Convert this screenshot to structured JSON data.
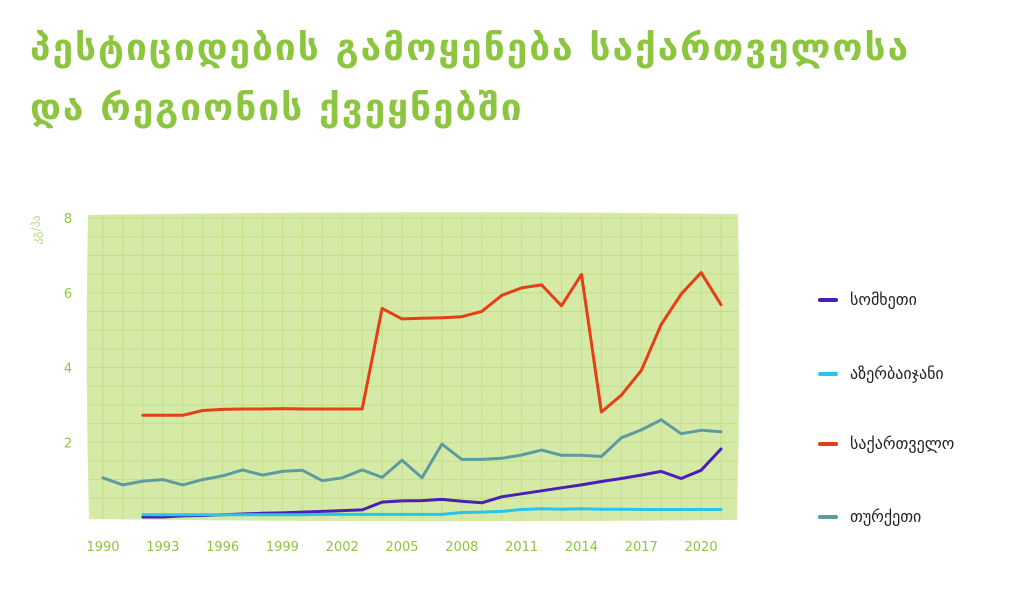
{
  "title": {
    "line1": "პესტიციდების გამოყენება საქართველოსა",
    "line2": "და რეგიონის ქვეყნებში"
  },
  "colors": {
    "title": "#8cc63f",
    "plot_bg": "#d6eaa8",
    "grid": "#c2df86",
    "tick": "#8cc63f"
  },
  "chart_data": {
    "type": "line",
    "ylabel": "კგ/ჰა",
    "xlabel": "",
    "xlim": [
      1990,
      2021
    ],
    "ylim": [
      0,
      8
    ],
    "xticks": [
      "1990",
      "1993",
      "1996",
      "1999",
      "2002",
      "2005",
      "2008",
      "2011",
      "2014",
      "2017",
      "2020"
    ],
    "yticks": [
      "2",
      "4",
      "6",
      "8"
    ],
    "grid": true,
    "legend_position": "right",
    "series": [
      {
        "name": "სომხეთი",
        "color": "#4a1fb3",
        "x": [
          1992,
          1993,
          1994,
          1995,
          1996,
          1997,
          1998,
          1999,
          2000,
          2001,
          2002,
          2003,
          2004,
          2005,
          2006,
          2007,
          2008,
          2009,
          2010,
          2011,
          2012,
          2013,
          2014,
          2015,
          2016,
          2017,
          2018,
          2019,
          2020,
          2021
        ],
        "y": [
          0.0,
          0.0,
          0.03,
          0.04,
          0.06,
          0.08,
          0.1,
          0.11,
          0.13,
          0.15,
          0.17,
          0.19,
          0.4,
          0.43,
          0.44,
          0.47,
          0.42,
          0.38,
          0.54,
          0.62,
          0.7,
          0.78,
          0.86,
          0.95,
          1.03,
          1.12,
          1.22,
          1.03,
          1.25,
          1.82
        ]
      },
      {
        "name": "აზერბაიჯანი",
        "color": "#29c3ec",
        "x": [
          1992,
          1993,
          1994,
          1995,
          1996,
          1997,
          1998,
          1999,
          2000,
          2001,
          2002,
          2003,
          2004,
          2005,
          2006,
          2007,
          2008,
          2009,
          2010,
          2011,
          2012,
          2013,
          2014,
          2015,
          2016,
          2017,
          2018,
          2019,
          2020,
          2021
        ],
        "y": [
          0.06,
          0.06,
          0.06,
          0.06,
          0.06,
          0.06,
          0.06,
          0.06,
          0.06,
          0.07,
          0.07,
          0.07,
          0.07,
          0.07,
          0.07,
          0.07,
          0.12,
          0.13,
          0.15,
          0.2,
          0.22,
          0.21,
          0.22,
          0.21,
          0.21,
          0.2,
          0.2,
          0.2,
          0.2,
          0.2
        ]
      },
      {
        "name": "საქართველო",
        "color": "#e63f16",
        "x": [
          1992,
          1993,
          1994,
          1995,
          1996,
          1997,
          1998,
          1999,
          2000,
          2001,
          2002,
          2003,
          2004,
          2005,
          2006,
          2007,
          2008,
          2009,
          2010,
          2011,
          2012,
          2013,
          2014,
          2015,
          2016,
          2017,
          2018,
          2019,
          2020,
          2021
        ],
        "y": [
          2.72,
          2.72,
          2.72,
          2.85,
          2.88,
          2.89,
          2.89,
          2.9,
          2.89,
          2.89,
          2.89,
          2.89,
          5.58,
          5.3,
          5.32,
          5.33,
          5.36,
          5.5,
          5.93,
          6.13,
          6.21,
          5.65,
          6.49,
          2.81,
          3.26,
          3.92,
          5.15,
          5.96,
          6.54,
          5.68
        ]
      },
      {
        "name": "თურქეთი",
        "color": "#5e9ba0",
        "x": [
          1990,
          1991,
          1992,
          1993,
          1994,
          1995,
          1996,
          1997,
          1998,
          1999,
          2000,
          2001,
          2002,
          2003,
          2004,
          2005,
          2006,
          2007,
          2008,
          2009,
          2010,
          2011,
          2012,
          2013,
          2014,
          2015,
          2016,
          2017,
          2018,
          2019,
          2020,
          2021
        ],
        "y": [
          1.05,
          0.86,
          0.96,
          1.0,
          0.86,
          1.0,
          1.1,
          1.26,
          1.12,
          1.22,
          1.25,
          0.97,
          1.05,
          1.26,
          1.06,
          1.52,
          1.05,
          1.95,
          1.54,
          1.54,
          1.57,
          1.66,
          1.79,
          1.65,
          1.65,
          1.62,
          2.12,
          2.33,
          2.6,
          2.23,
          2.32,
          2.28
        ]
      }
    ]
  }
}
